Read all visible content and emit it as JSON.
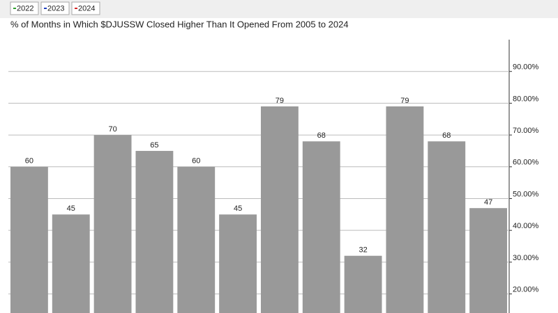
{
  "chart_data": {
    "type": "bar",
    "title": "% of Months in Which $DJUSSW Closed Higher Than It Opened From 2005 to 2024",
    "legend": [
      {
        "name": "2022",
        "color": "#2ca02c"
      },
      {
        "name": "2023",
        "color": "#1f3fbf"
      },
      {
        "name": "2024",
        "color": "#d62728"
      }
    ],
    "values": [
      60,
      45,
      70,
      65,
      60,
      45,
      79,
      68,
      32,
      79,
      68,
      47
    ],
    "color": "#999999",
    "ylim": [
      14,
      100
    ],
    "yticks": [
      {
        "value": 20,
        "label": "20.00%"
      },
      {
        "value": 30,
        "label": "30.00%"
      },
      {
        "value": 40,
        "label": "40.00%"
      },
      {
        "value": 50,
        "label": "50.00%"
      },
      {
        "value": 60,
        "label": "60.00%"
      },
      {
        "value": 70,
        "label": "70.00%"
      },
      {
        "value": 80,
        "label": "80.00%"
      },
      {
        "value": 90,
        "label": "90.00%"
      }
    ],
    "grid": true
  }
}
